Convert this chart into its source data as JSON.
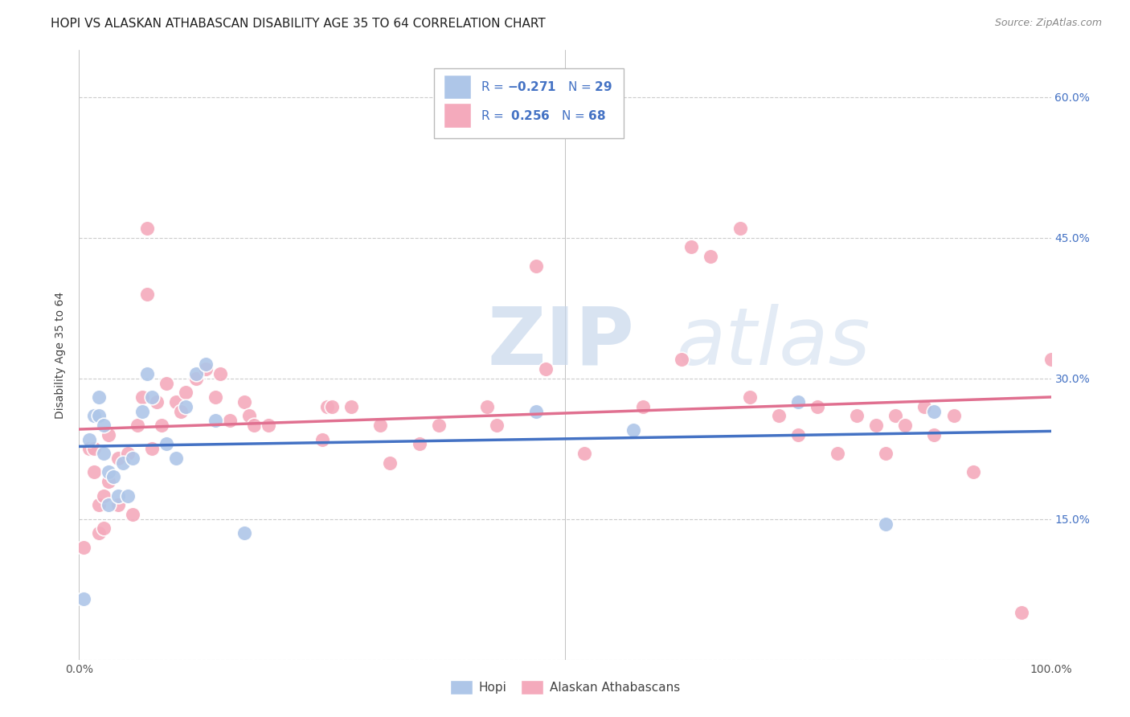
{
  "title": "HOPI VS ALASKAN ATHABASCAN DISABILITY AGE 35 TO 64 CORRELATION CHART",
  "source": "Source: ZipAtlas.com",
  "ylabel": "Disability Age 35 to 64",
  "xlim": [
    0.0,
    1.0
  ],
  "ylim": [
    0.0,
    0.65
  ],
  "xticks": [
    0.0,
    0.2,
    0.4,
    0.6,
    0.8,
    1.0
  ],
  "xtick_labels": [
    "0.0%",
    "",
    "",
    "",
    "",
    "100.0%"
  ],
  "yticks": [
    0.0,
    0.15,
    0.3,
    0.45,
    0.6
  ],
  "ytick_labels": [
    "",
    "15.0%",
    "30.0%",
    "45.0%",
    "60.0%"
  ],
  "hopi_N": "29",
  "athabascan_R": "0.256",
  "athabascan_N": "68",
  "hopi_color": "#aec6e8",
  "athabascan_color": "#f4aabc",
  "hopi_line_color": "#4472c4",
  "athabascan_line_color": "#e07090",
  "legend_label_1": "Hopi",
  "legend_label_2": "Alaskan Athabascans",
  "hopi_x": [
    0.005,
    0.01,
    0.015,
    0.02,
    0.02,
    0.025,
    0.025,
    0.03,
    0.03,
    0.035,
    0.04,
    0.045,
    0.05,
    0.055,
    0.065,
    0.07,
    0.075,
    0.09,
    0.1,
    0.11,
    0.12,
    0.13,
    0.14,
    0.17,
    0.47,
    0.57,
    0.74,
    0.83,
    0.88
  ],
  "hopi_y": [
    0.065,
    0.235,
    0.26,
    0.26,
    0.28,
    0.22,
    0.25,
    0.2,
    0.165,
    0.195,
    0.175,
    0.21,
    0.175,
    0.215,
    0.265,
    0.305,
    0.28,
    0.23,
    0.215,
    0.27,
    0.305,
    0.315,
    0.255,
    0.135,
    0.265,
    0.245,
    0.275,
    0.145,
    0.265
  ],
  "athabascan_x": [
    0.005,
    0.01,
    0.015,
    0.015,
    0.02,
    0.02,
    0.025,
    0.025,
    0.03,
    0.03,
    0.04,
    0.04,
    0.05,
    0.055,
    0.06,
    0.065,
    0.07,
    0.07,
    0.075,
    0.08,
    0.085,
    0.09,
    0.1,
    0.105,
    0.11,
    0.12,
    0.13,
    0.14,
    0.145,
    0.155,
    0.17,
    0.175,
    0.18,
    0.195,
    0.25,
    0.255,
    0.26,
    0.28,
    0.31,
    0.32,
    0.35,
    0.37,
    0.42,
    0.43,
    0.47,
    0.48,
    0.52,
    0.58,
    0.62,
    0.63,
    0.65,
    0.68,
    0.69,
    0.72,
    0.74,
    0.76,
    0.78,
    0.8,
    0.82,
    0.83,
    0.84,
    0.85,
    0.87,
    0.88,
    0.9,
    0.92,
    0.97,
    1.0
  ],
  "athabascan_y": [
    0.12,
    0.225,
    0.225,
    0.2,
    0.165,
    0.135,
    0.175,
    0.14,
    0.24,
    0.19,
    0.215,
    0.165,
    0.22,
    0.155,
    0.25,
    0.28,
    0.46,
    0.39,
    0.225,
    0.275,
    0.25,
    0.295,
    0.275,
    0.265,
    0.285,
    0.3,
    0.31,
    0.28,
    0.305,
    0.255,
    0.275,
    0.26,
    0.25,
    0.25,
    0.235,
    0.27,
    0.27,
    0.27,
    0.25,
    0.21,
    0.23,
    0.25,
    0.27,
    0.25,
    0.42,
    0.31,
    0.22,
    0.27,
    0.32,
    0.44,
    0.43,
    0.46,
    0.28,
    0.26,
    0.24,
    0.27,
    0.22,
    0.26,
    0.25,
    0.22,
    0.26,
    0.25,
    0.27,
    0.24,
    0.26,
    0.2,
    0.05,
    0.32
  ],
  "title_fontsize": 11,
  "axis_label_fontsize": 10,
  "tick_fontsize": 10,
  "scatter_size": 180
}
